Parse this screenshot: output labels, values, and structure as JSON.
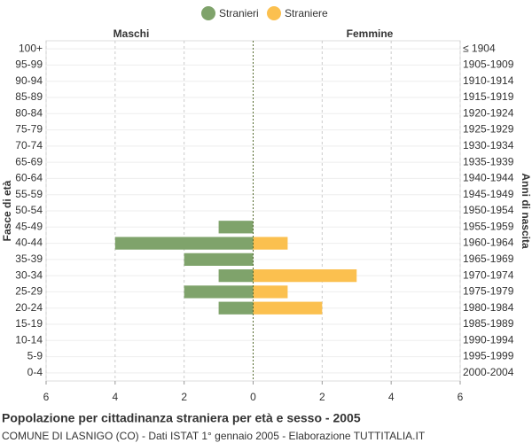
{
  "chart_data": {
    "type": "pyramid",
    "title": "Popolazione per cittadinanza straniera per età e sesso - 2005",
    "subtitle": "COMUNE DI LASNIGO (CO) - Dati ISTAT 1° gennaio 2005 - Elaborazione TUTTITALIA.IT",
    "left_label": "Maschi",
    "right_label": "Femmine",
    "y_label": "Fasce di età",
    "y2_label": "Anni di nascita",
    "categories": [
      "100+",
      "95-99",
      "90-94",
      "85-89",
      "80-84",
      "75-79",
      "70-74",
      "65-69",
      "60-64",
      "55-59",
      "50-54",
      "45-49",
      "40-44",
      "35-39",
      "30-34",
      "25-29",
      "20-24",
      "15-19",
      "10-14",
      "5-9",
      "0-4"
    ],
    "y2_categories": [
      "≤ 1904",
      "1905-1909",
      "1910-1914",
      "1915-1919",
      "1920-1924",
      "1925-1929",
      "1930-1934",
      "1935-1939",
      "1940-1944",
      "1945-1949",
      "1950-1954",
      "1955-1959",
      "1960-1964",
      "1965-1969",
      "1970-1974",
      "1975-1979",
      "1980-1984",
      "1985-1989",
      "1990-1994",
      "1995-1999",
      "2000-2004"
    ],
    "series": [
      {
        "name": "Stranieri",
        "color": "#7fa36b",
        "side": "left",
        "values": [
          0,
          0,
          0,
          0,
          0,
          0,
          0,
          0,
          0,
          0,
          0,
          1,
          4,
          2,
          1,
          2,
          1,
          0,
          0,
          0,
          0
        ]
      },
      {
        "name": "Straniere",
        "color": "#fbc04f",
        "side": "right",
        "values": [
          0,
          0,
          0,
          0,
          0,
          0,
          0,
          0,
          0,
          0,
          0,
          0,
          1,
          0,
          3,
          1,
          2,
          0,
          0,
          0,
          0
        ]
      }
    ],
    "xlim": [
      0,
      6
    ],
    "xticks": [
      0,
      2,
      4,
      6
    ],
    "grid": true,
    "legend": "top"
  }
}
